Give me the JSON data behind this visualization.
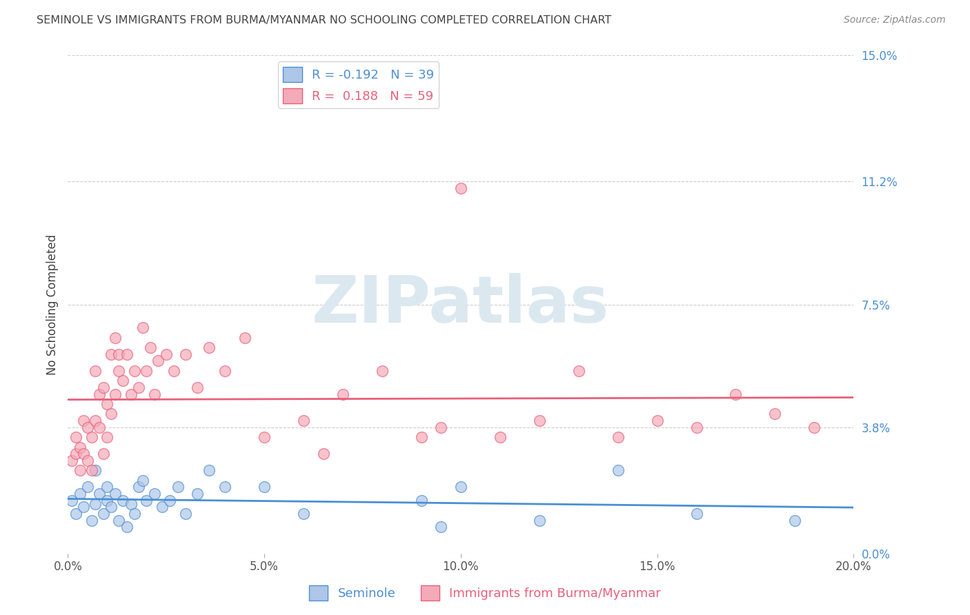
{
  "title": "SEMINOLE VS IMMIGRANTS FROM BURMA/MYANMAR NO SCHOOLING COMPLETED CORRELATION CHART",
  "source": "Source: ZipAtlas.com",
  "ylabel": "No Schooling Completed",
  "xlabel_ticks": [
    "0.0%",
    "5.0%",
    "10.0%",
    "15.0%",
    "20.0%"
  ],
  "xlabel_vals": [
    0.0,
    0.05,
    0.1,
    0.15,
    0.2
  ],
  "ylabel_ticks": [
    "15.0%",
    "11.2%",
    "7.5%",
    "3.8%",
    "0.0%"
  ],
  "ylabel_vals": [
    0.15,
    0.112,
    0.075,
    0.038,
    0.0
  ],
  "xlim": [
    0.0,
    0.2
  ],
  "ylim": [
    0.0,
    0.15
  ],
  "legend_blue_R": "-0.192",
  "legend_blue_N": "39",
  "legend_pink_R": "0.188",
  "legend_pink_N": "59",
  "blue_color": "#aec6e8",
  "pink_color": "#f4aab8",
  "blue_line_color": "#4a8fd4",
  "pink_line_color": "#e8607a",
  "title_color": "#444444",
  "source_color": "#888888",
  "axis_label_color": "#444444",
  "tick_color_right": "#4a8fd4",
  "tick_color_bottom": "#555555",
  "grid_color": "#cccccc",
  "watermark_text": "ZIPatlas",
  "watermark_color": "#dce8f0",
  "blue_scatter_x": [
    0.001,
    0.002,
    0.003,
    0.004,
    0.005,
    0.006,
    0.007,
    0.007,
    0.008,
    0.009,
    0.01,
    0.01,
    0.011,
    0.012,
    0.013,
    0.014,
    0.015,
    0.016,
    0.017,
    0.018,
    0.019,
    0.02,
    0.022,
    0.024,
    0.026,
    0.028,
    0.03,
    0.033,
    0.036,
    0.04,
    0.05,
    0.06,
    0.09,
    0.095,
    0.1,
    0.12,
    0.14,
    0.16,
    0.185
  ],
  "blue_scatter_y": [
    0.016,
    0.012,
    0.018,
    0.014,
    0.02,
    0.01,
    0.015,
    0.025,
    0.018,
    0.012,
    0.02,
    0.016,
    0.014,
    0.018,
    0.01,
    0.016,
    0.008,
    0.015,
    0.012,
    0.02,
    0.022,
    0.016,
    0.018,
    0.014,
    0.016,
    0.02,
    0.012,
    0.018,
    0.025,
    0.02,
    0.02,
    0.012,
    0.016,
    0.008,
    0.02,
    0.01,
    0.025,
    0.012,
    0.01
  ],
  "pink_scatter_x": [
    0.001,
    0.002,
    0.002,
    0.003,
    0.003,
    0.004,
    0.004,
    0.005,
    0.005,
    0.006,
    0.006,
    0.007,
    0.007,
    0.008,
    0.008,
    0.009,
    0.009,
    0.01,
    0.01,
    0.011,
    0.011,
    0.012,
    0.012,
    0.013,
    0.013,
    0.014,
    0.015,
    0.016,
    0.017,
    0.018,
    0.019,
    0.02,
    0.021,
    0.022,
    0.023,
    0.025,
    0.027,
    0.03,
    0.033,
    0.036,
    0.04,
    0.045,
    0.05,
    0.06,
    0.065,
    0.07,
    0.08,
    0.09,
    0.095,
    0.1,
    0.11,
    0.12,
    0.13,
    0.14,
    0.15,
    0.16,
    0.17,
    0.18,
    0.19
  ],
  "pink_scatter_y": [
    0.028,
    0.03,
    0.035,
    0.025,
    0.032,
    0.03,
    0.04,
    0.028,
    0.038,
    0.025,
    0.035,
    0.04,
    0.055,
    0.038,
    0.048,
    0.03,
    0.05,
    0.035,
    0.045,
    0.042,
    0.06,
    0.048,
    0.065,
    0.055,
    0.06,
    0.052,
    0.06,
    0.048,
    0.055,
    0.05,
    0.068,
    0.055,
    0.062,
    0.048,
    0.058,
    0.06,
    0.055,
    0.06,
    0.05,
    0.062,
    0.055,
    0.065,
    0.035,
    0.04,
    0.03,
    0.048,
    0.055,
    0.035,
    0.038,
    0.11,
    0.035,
    0.04,
    0.055,
    0.035,
    0.04,
    0.038,
    0.048,
    0.042,
    0.038
  ]
}
